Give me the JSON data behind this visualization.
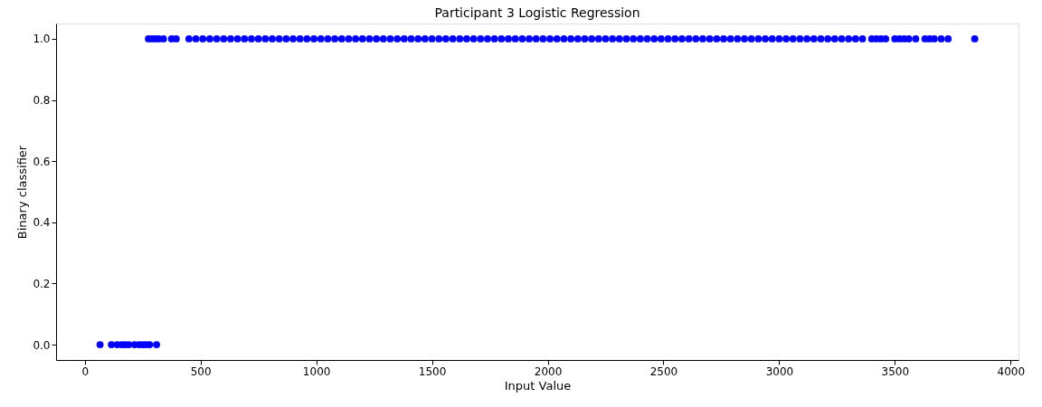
{
  "chart_data": {
    "type": "scatter",
    "title": "Participant 3 Logistic Regression",
    "xlabel": "Input Value",
    "ylabel": "Binary classifier",
    "x": [
      66,
      115,
      140,
      160,
      175,
      190,
      215,
      235,
      250,
      265,
      280,
      310,
      275,
      290,
      305,
      320,
      340,
      375,
      395,
      450,
      480,
      510,
      540,
      570,
      600,
      630,
      660,
      690,
      720,
      750,
      780,
      810,
      840,
      870,
      900,
      930,
      960,
      990,
      1020,
      1050,
      1080,
      1110,
      1140,
      1170,
      1200,
      1230,
      1260,
      1290,
      1320,
      1350,
      1380,
      1410,
      1440,
      1470,
      1500,
      1530,
      1560,
      1590,
      1620,
      1650,
      1680,
      1710,
      1740,
      1770,
      1800,
      1830,
      1860,
      1890,
      1920,
      1950,
      1980,
      2010,
      2040,
      2070,
      2100,
      2130,
      2160,
      2190,
      2220,
      2250,
      2280,
      2310,
      2340,
      2370,
      2400,
      2430,
      2460,
      2490,
      2520,
      2550,
      2580,
      2610,
      2640,
      2670,
      2700,
      2730,
      2760,
      2790,
      2820,
      2850,
      2880,
      2910,
      2940,
      2970,
      3000,
      3030,
      3060,
      3090,
      3120,
      3150,
      3180,
      3210,
      3240,
      3270,
      3300,
      3330,
      3360,
      3400,
      3420,
      3440,
      3460,
      3500,
      3520,
      3540,
      3560,
      3590,
      3630,
      3650,
      3670,
      3700,
      3730,
      3845
    ],
    "series": [
      {
        "color": "#0000ff",
        "values": [
          0,
          0,
          0,
          0,
          0,
          0,
          0,
          0,
          0,
          0,
          0,
          0,
          1,
          1,
          1,
          1,
          1,
          1,
          1,
          1,
          1,
          1,
          1,
          1,
          1,
          1,
          1,
          1,
          1,
          1,
          1,
          1,
          1,
          1,
          1,
          1,
          1,
          1,
          1,
          1,
          1,
          1,
          1,
          1,
          1,
          1,
          1,
          1,
          1,
          1,
          1,
          1,
          1,
          1,
          1,
          1,
          1,
          1,
          1,
          1,
          1,
          1,
          1,
          1,
          1,
          1,
          1,
          1,
          1,
          1,
          1,
          1,
          1,
          1,
          1,
          1,
          1,
          1,
          1,
          1,
          1,
          1,
          1,
          1,
          1,
          1,
          1,
          1,
          1,
          1,
          1,
          1,
          1,
          1,
          1,
          1,
          1,
          1,
          1,
          1,
          1,
          1,
          1,
          1,
          1,
          1,
          1,
          1,
          1,
          1,
          1,
          1,
          1,
          1,
          1,
          1,
          1,
          1,
          1,
          1,
          1,
          1,
          1,
          1,
          1,
          1,
          1,
          1,
          1,
          1,
          1,
          1
        ]
      }
    ],
    "xlim": [
      -124,
      4034
    ],
    "xticks": [
      0,
      500,
      1000,
      1500,
      2000,
      2500,
      3000,
      3500,
      4000
    ],
    "ylim": [
      -0.05,
      1.05
    ],
    "yticks": [
      {
        "value": 0,
        "label": "0.0"
      },
      {
        "value": 0.2,
        "label": "0.2"
      },
      {
        "value": 0.4,
        "label": "0.4"
      },
      {
        "value": 0.6,
        "label": "0.6"
      },
      {
        "value": 0.8,
        "label": "0.8"
      },
      {
        "value": 1,
        "label": "1.0"
      }
    ],
    "grid": false,
    "marker": "circle"
  }
}
